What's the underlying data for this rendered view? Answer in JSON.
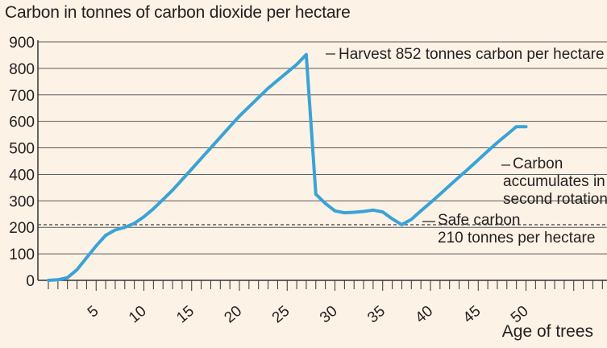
{
  "chart_data": {
    "type": "line",
    "title": "Carbon in tonnes of carbon dioxide per hectare",
    "xlabel": "Age of trees",
    "ylabel": "",
    "xlim": [
      -1,
      58
    ],
    "ylim": [
      0,
      900
    ],
    "grid": true,
    "x_ticks": [
      5,
      10,
      15,
      20,
      25,
      30,
      35,
      40,
      45,
      50
    ],
    "y_ticks": [
      0,
      100,
      200,
      300,
      400,
      500,
      600,
      700,
      800,
      900
    ],
    "series": [
      {
        "color": "#3aa3d6",
        "x": [
          0,
          1,
          2,
          3,
          4,
          5,
          6,
          7,
          8,
          9,
          10,
          11,
          12,
          13,
          14,
          15,
          16,
          17,
          18,
          19,
          20,
          21,
          22,
          23,
          24,
          25,
          26,
          27,
          28,
          29,
          30,
          31,
          32,
          33,
          34,
          35,
          36,
          37,
          38,
          39,
          40,
          41,
          42,
          43,
          44,
          45,
          46,
          47,
          48,
          49,
          50
        ],
        "values": [
          0,
          2,
          10,
          40,
          85,
          130,
          170,
          190,
          200,
          215,
          240,
          270,
          305,
          340,
          380,
          420,
          460,
          500,
          540,
          580,
          620,
          655,
          690,
          725,
          755,
          785,
          815,
          852,
          325,
          290,
          262,
          255,
          257,
          260,
          265,
          258,
          232,
          210,
          230,
          262,
          293,
          325,
          358,
          390,
          422,
          455,
          488,
          520,
          550,
          580,
          580
        ]
      }
    ],
    "reference_line": {
      "y": 210,
      "style": "dashed",
      "color": "#555555"
    },
    "annotations": [
      {
        "lines": [
          "Harvest 852 tonnes carbon per hectare"
        ]
      },
      {
        "lines": [
          "Carbon",
          "accumulates in",
          "second rotation"
        ]
      },
      {
        "lines": [
          "Safe carbon",
          "210 tonnes per hectare"
        ]
      }
    ]
  }
}
